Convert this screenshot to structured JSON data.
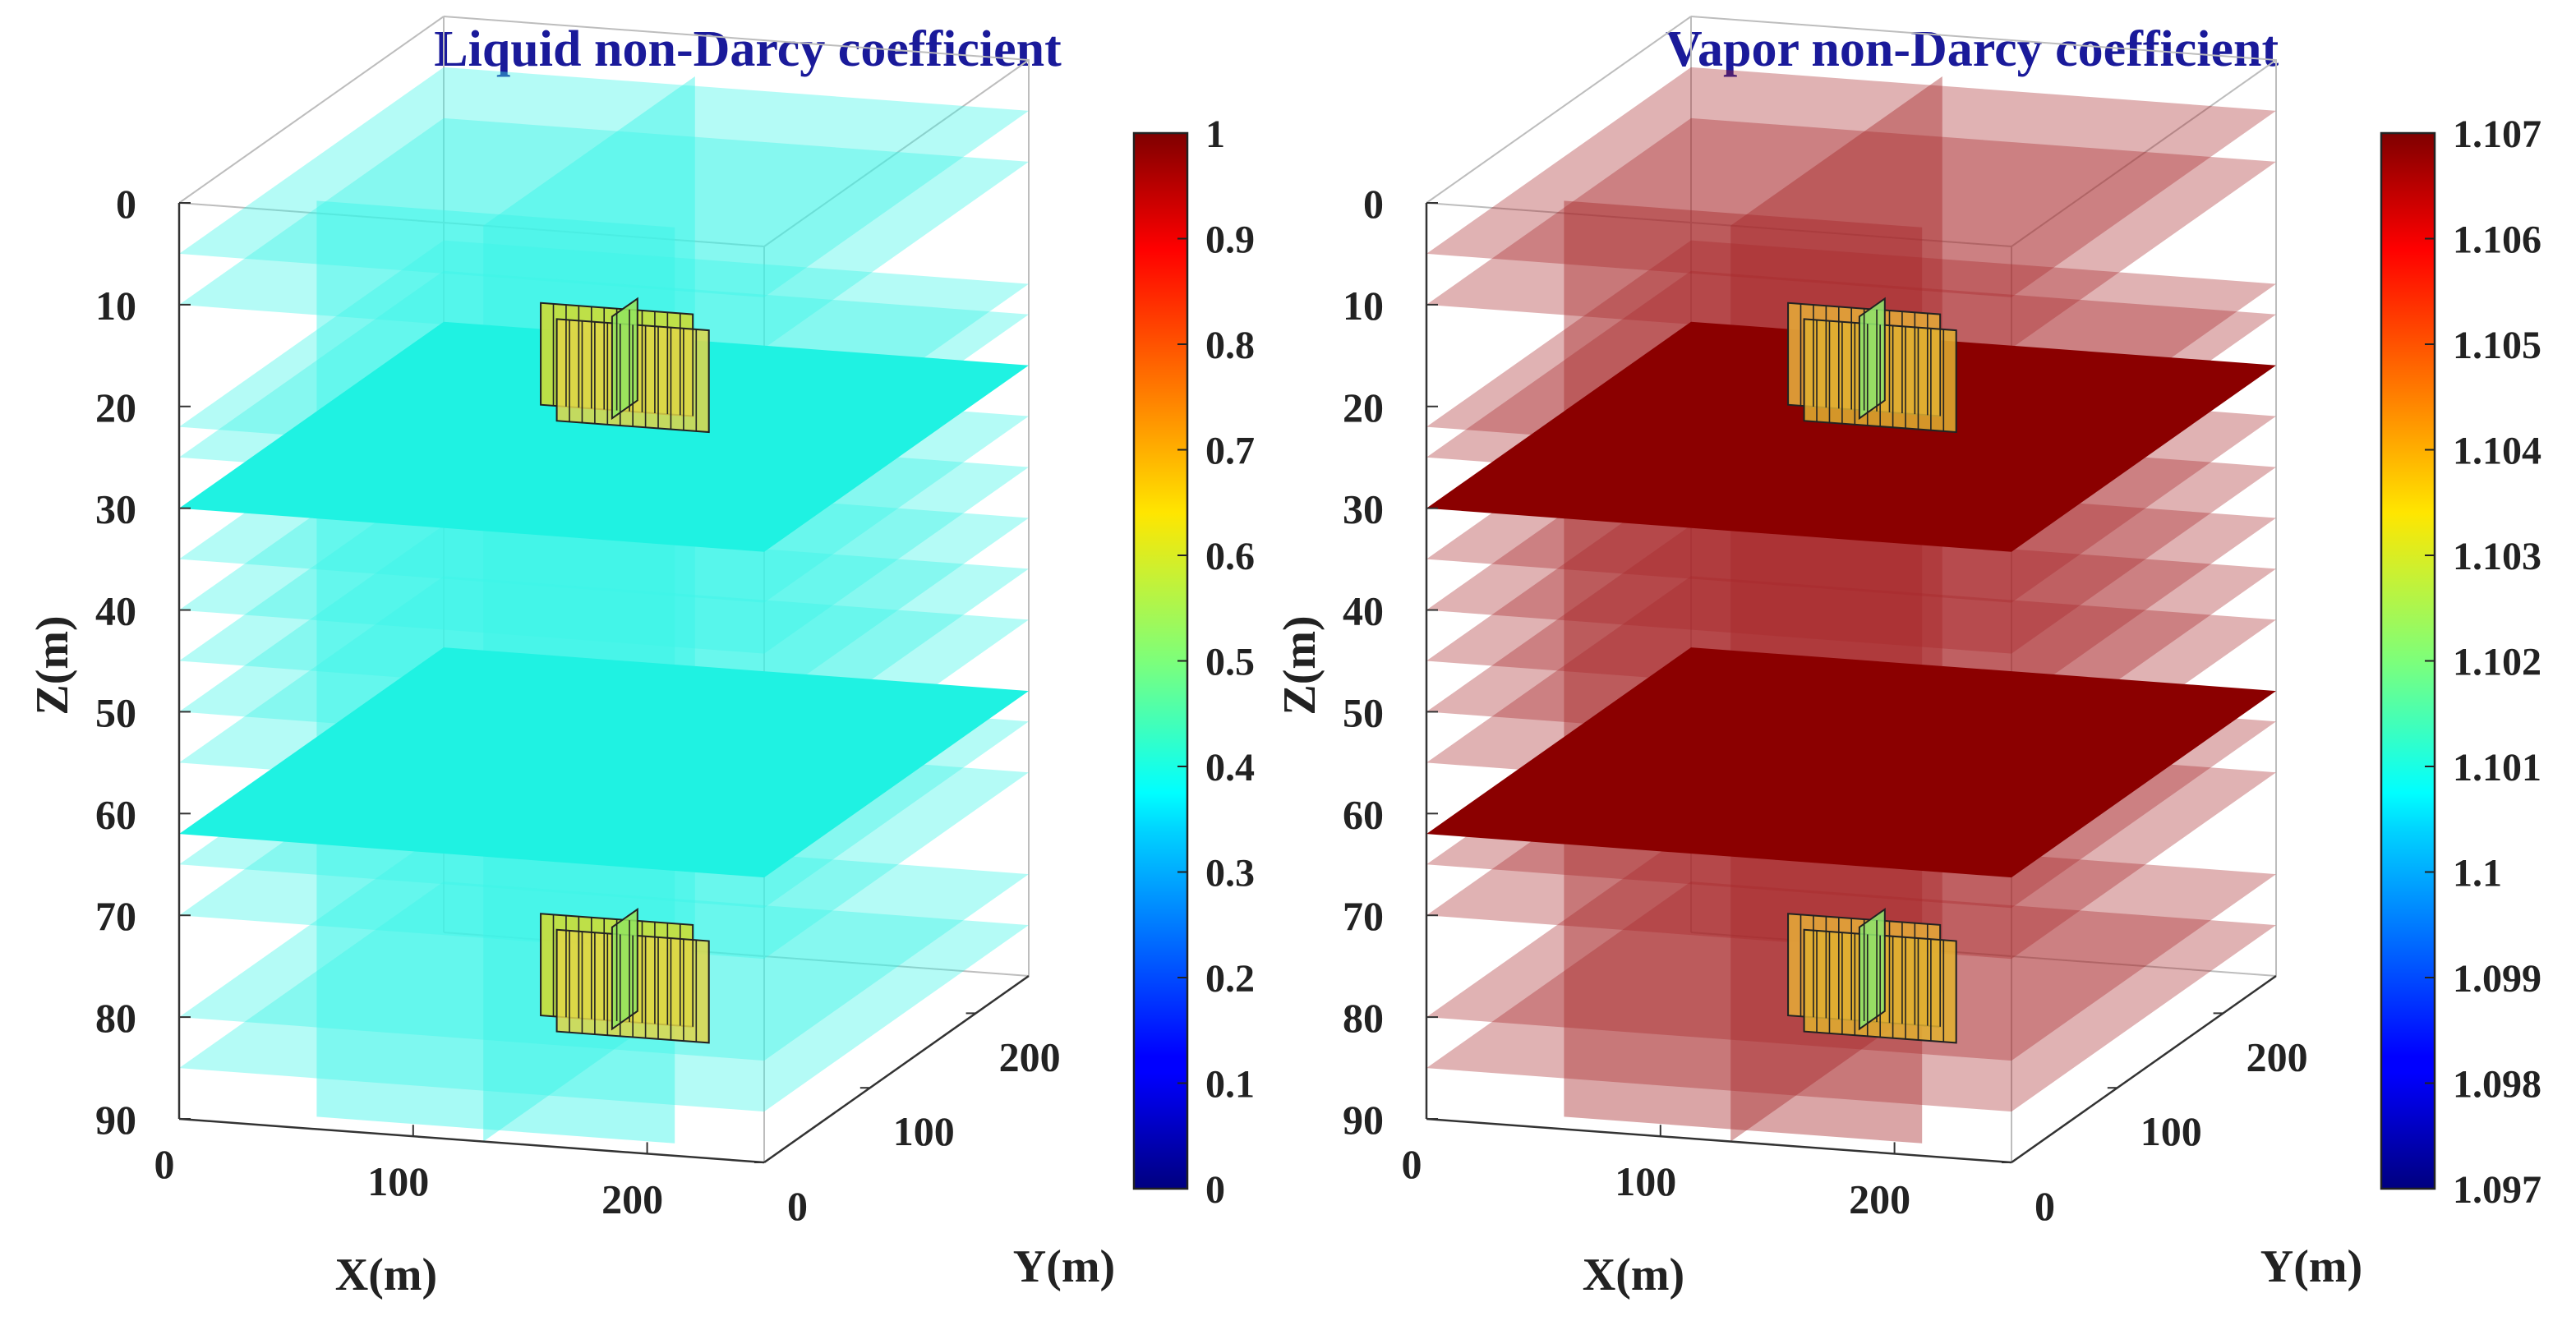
{
  "chart_data": [
    {
      "type": "heatmap",
      "title": "Liquid non-Darcy coefficient",
      "xlabel": "X(m)",
      "ylabel": "Y(m)",
      "zlabel": "Z(m)",
      "xlim": [
        0,
        250
      ],
      "ylim": [
        0,
        250
      ],
      "zlim": [
        0,
        90
      ],
      "z_direction": "reversed",
      "x_ticks": [
        "0",
        "100",
        "200"
      ],
      "y_ticks": [
        "0",
        "100",
        "200"
      ],
      "z_ticks": [
        "0",
        "10",
        "20",
        "30",
        "40",
        "50",
        "60",
        "70",
        "80",
        "90"
      ],
      "colormap": "jet",
      "colorbar": {
        "min": 0,
        "max": 1,
        "ticks": [
          "0",
          "0.1",
          "0.2",
          "0.3",
          "0.4",
          "0.5",
          "0.6",
          "0.7",
          "0.8",
          "0.9",
          "1"
        ]
      },
      "background_value": 0.39,
      "slice_color": "#3cf5e8",
      "slice_opacity": 0.45,
      "opaque_layer_color": "#1ff2e2",
      "translucent_slice_depths_m": [
        5,
        10,
        22,
        25,
        35,
        40,
        45,
        50,
        55,
        65,
        70,
        80,
        85
      ],
      "opaque_layer_depths_m": [
        30,
        62
      ],
      "vertical_slices": [
        "x-section",
        "y-section"
      ],
      "fractures": [
        {
          "depth_range_m": [
            8,
            18
          ],
          "value_range": [
            0.45,
            0.65
          ]
        },
        {
          "depth_range_m": [
            68,
            78
          ],
          "value_range": [
            0.45,
            0.65
          ]
        }
      ],
      "fracture_colors": [
        "#c9dd3a",
        "#93e45e",
        "#e0d648"
      ],
      "grid": true,
      "box": true
    },
    {
      "type": "heatmap",
      "title": "Vapor non-Darcy coefficient",
      "xlabel": "X(m)",
      "ylabel": "Y(m)",
      "zlabel": "Z(m)",
      "xlim": [
        0,
        250
      ],
      "ylim": [
        0,
        250
      ],
      "zlim": [
        0,
        90
      ],
      "z_direction": "reversed",
      "x_ticks": [
        "0",
        "100",
        "200"
      ],
      "y_ticks": [
        "0",
        "100",
        "200"
      ],
      "z_ticks": [
        "0",
        "10",
        "20",
        "30",
        "40",
        "50",
        "60",
        "70",
        "80",
        "90"
      ],
      "colormap": "jet",
      "colorbar": {
        "min": 1.097,
        "max": 1.107,
        "ticks": [
          "1.097",
          "1.098",
          "1.099",
          "1.1",
          "1.101",
          "1.102",
          "1.103",
          "1.104",
          "1.105",
          "1.106",
          "1.107"
        ]
      },
      "background_value": 1.107,
      "slice_color": "#a8282a",
      "slice_opacity": 0.42,
      "opaque_layer_color": "#8b0000",
      "translucent_slice_depths_m": [
        5,
        10,
        22,
        25,
        35,
        40,
        45,
        50,
        55,
        65,
        70,
        80,
        85
      ],
      "opaque_layer_depths_m": [
        30,
        62
      ],
      "vertical_slices": [
        "x-section",
        "y-section"
      ],
      "fractures": [
        {
          "depth_range_m": [
            8,
            18
          ],
          "value_range": [
            1.1,
            1.104
          ]
        },
        {
          "depth_range_m": [
            68,
            78
          ],
          "value_range": [
            1.104,
            1.105
          ]
        }
      ],
      "fracture_colors": [
        "#e2a43a",
        "#8fe26a",
        "#e0b030"
      ],
      "grid": true,
      "box": true
    }
  ]
}
